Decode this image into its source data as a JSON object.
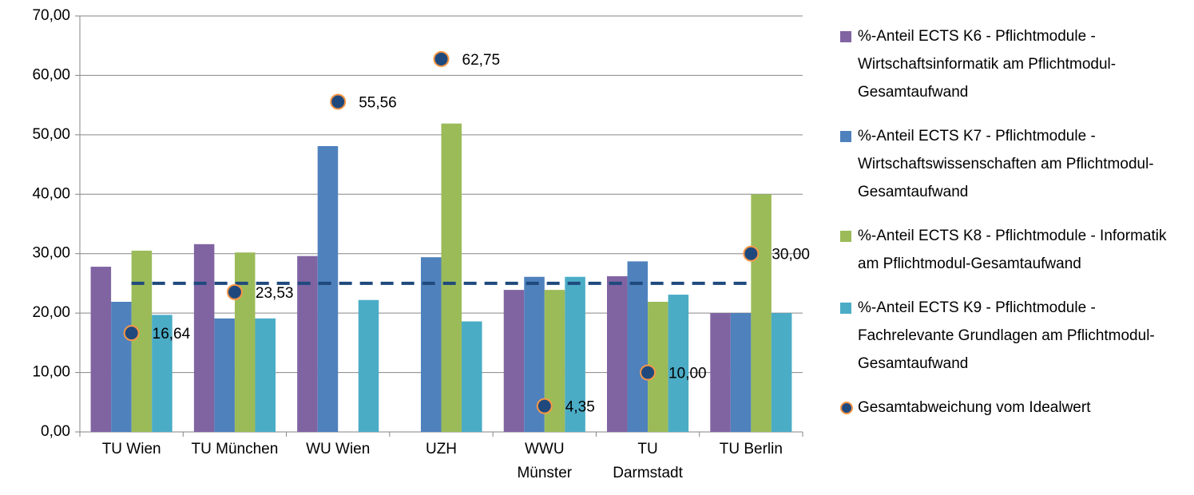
{
  "chart_data": {
    "type": "bar",
    "categories": [
      "TU Wien",
      "TU München",
      "WU Wien",
      "UZH",
      "WWU Münster",
      "TU Darmstadt",
      "TU Berlin"
    ],
    "series": [
      {
        "name": "%-Anteil ECTS  K6 - Pflichtmodule - Wirtschaftsinformatik am Pflichtmodul-Gesamtaufwand",
        "color": "#8064a2",
        "values": [
          27.8,
          31.6,
          29.6,
          0,
          23.9,
          26.2,
          20.0
        ]
      },
      {
        "name": "%-Anteil ECTS  K7 - Pflichtmodule - Wirtschaftswissenschaften am Pflichtmodul-Gesamtaufwand",
        "color": "#4f81bd",
        "values": [
          21.9,
          19.1,
          48.1,
          29.4,
          26.1,
          28.7,
          20.0
        ]
      },
      {
        "name": "%-Anteil ECTS  K8 - Pflichtmodule - Informatik am Pflichtmodul-Gesamtaufwand",
        "color": "#9bbb59",
        "values": [
          30.5,
          30.2,
          0,
          51.9,
          23.9,
          21.9,
          40.0
        ]
      },
      {
        "name": "%-Anteil ECTS  K9 - Pflichtmodule - Fachrelevante Grundlagen am Pflichtmodul-Gesamtaufwand",
        "color": "#4bacc6",
        "values": [
          19.7,
          19.1,
          22.2,
          18.6,
          26.1,
          23.1,
          20.0
        ]
      },
      {
        "name": "Gesamtabweichung vom Idealwert",
        "type": "scatter",
        "color": "#1f497d",
        "edge_color": "#f79646",
        "values": [
          16.64,
          23.53,
          55.56,
          62.75,
          4.35,
          10.0,
          30.0
        ],
        "value_labels": [
          "16,64",
          "23,53",
          "55,56",
          "62,75",
          "4,35",
          "10,00",
          "30,00"
        ]
      }
    ],
    "reference_line": {
      "values": [
        25,
        25,
        25,
        25,
        25,
        25,
        25
      ],
      "color": "#1f497d",
      "dashed": true
    },
    "ylim": [
      0,
      70
    ],
    "yticks": [
      {
        "value": 0,
        "label": "0,00"
      },
      {
        "value": 10,
        "label": "10,00"
      },
      {
        "value": 20,
        "label": "20,00"
      },
      {
        "value": 30,
        "label": "30,00"
      },
      {
        "value": 40,
        "label": "40,00"
      },
      {
        "value": 50,
        "label": "50,00"
      },
      {
        "value": 60,
        "label": "60,00"
      },
      {
        "value": 70,
        "label": "70,00"
      }
    ],
    "grid": true,
    "legend": "right"
  }
}
